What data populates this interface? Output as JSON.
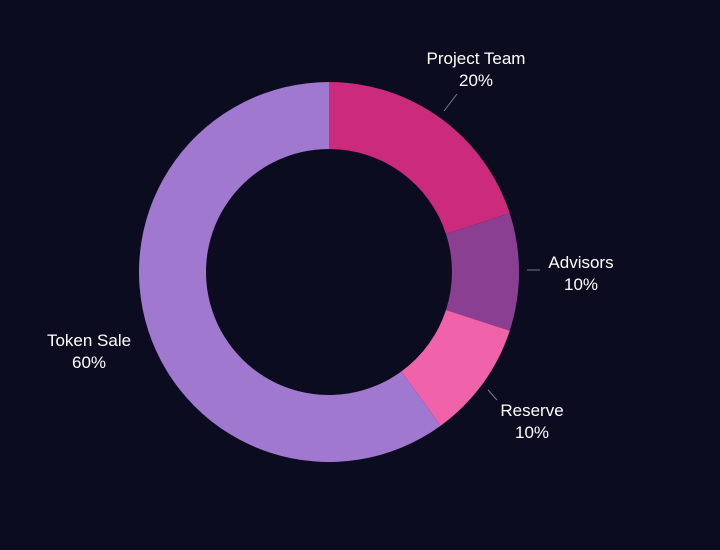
{
  "colors": {
    "background": "#0c0c20",
    "label_text": "#ffffff",
    "leader_line": "#7a7a8c"
  },
  "chart_data": {
    "type": "pie",
    "subtype": "donut",
    "legend": "none",
    "start_angle_deg": 0,
    "direction": "clockwise",
    "slices": [
      {
        "label": "Project Team",
        "value": 20,
        "value_label": "20%",
        "color": "#cc2a7c"
      },
      {
        "label": "Advisors",
        "value": 10,
        "value_label": "10%",
        "color": "#8b3f92"
      },
      {
        "label": "Reserve",
        "value": 10,
        "value_label": "10%",
        "color": "#f062aa"
      },
      {
        "label": "Token Sale",
        "value": 60,
        "value_label": "60%",
        "color": "#a078d0"
      }
    ]
  }
}
